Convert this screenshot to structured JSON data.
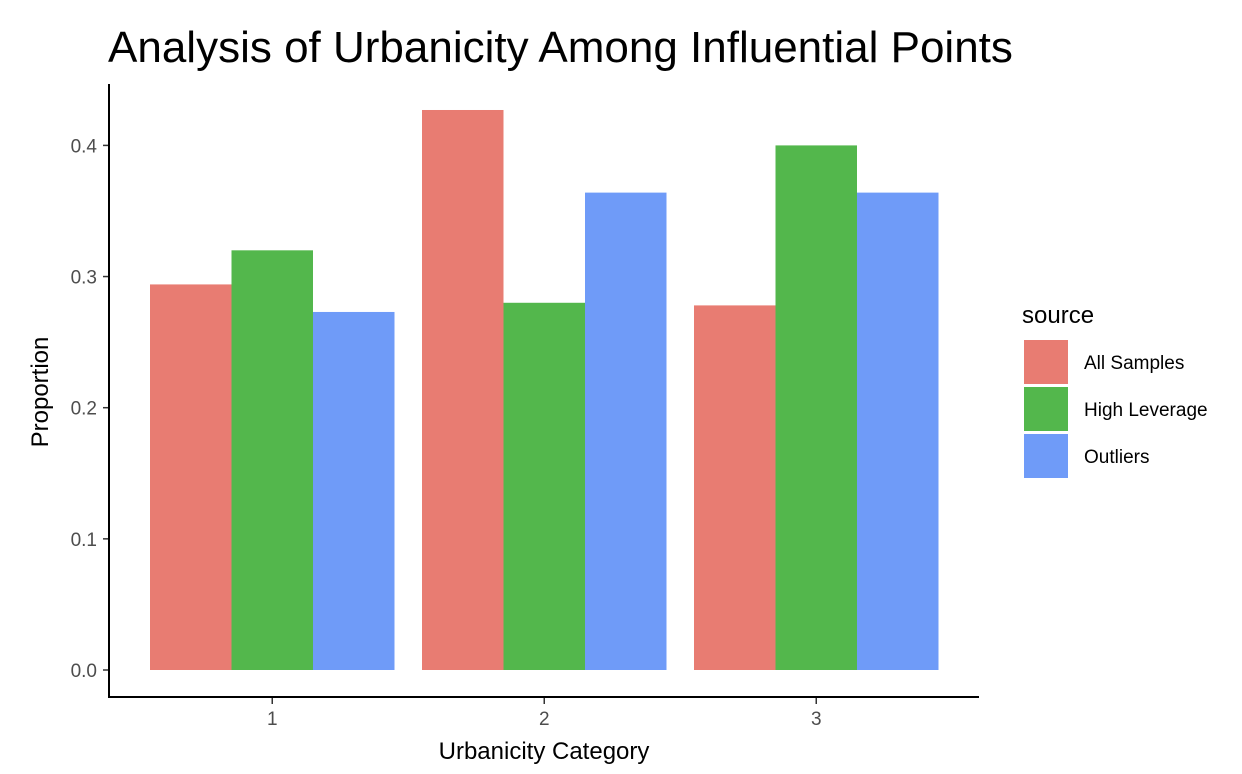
{
  "chart_data": {
    "type": "bar",
    "title": "Analysis of Urbanicity Among Influential Points",
    "xlabel": "Urbanicity Category",
    "ylabel": "Proportion",
    "categories": [
      "1",
      "2",
      "3"
    ],
    "ylim": [
      0,
      0.44
    ],
    "yticks": [
      0.0,
      0.1,
      0.2,
      0.3,
      0.4
    ],
    "ytick_labels": [
      "0.0",
      "0.1",
      "0.2",
      "0.3",
      "0.4"
    ],
    "grid": false,
    "legend": {
      "title": "source",
      "position": "right"
    },
    "series": [
      {
        "name": "All Samples",
        "color": "#E87C72",
        "values": [
          0.294,
          0.427,
          0.278
        ]
      },
      {
        "name": "High Leverage",
        "color": "#53B74C",
        "values": [
          0.32,
          0.28,
          0.4
        ]
      },
      {
        "name": "Outliers",
        "color": "#6F9BF8",
        "values": [
          0.273,
          0.364,
          0.364
        ]
      }
    ]
  }
}
